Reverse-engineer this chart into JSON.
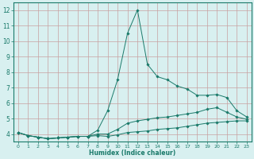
{
  "xlabel": "Humidex (Indice chaleur)",
  "x": [
    0,
    1,
    2,
    3,
    4,
    5,
    6,
    7,
    8,
    9,
    10,
    11,
    12,
    13,
    14,
    15,
    16,
    17,
    18,
    19,
    20,
    21,
    22,
    23
  ],
  "line1": [
    4.1,
    3.9,
    3.8,
    3.7,
    3.75,
    3.8,
    3.85,
    3.85,
    3.9,
    3.85,
    3.95,
    4.1,
    4.15,
    4.2,
    4.3,
    4.35,
    4.4,
    4.5,
    4.6,
    4.7,
    4.75,
    4.8,
    4.85,
    4.85
  ],
  "line2": [
    4.1,
    3.9,
    3.8,
    3.7,
    3.75,
    3.8,
    3.85,
    3.85,
    4.0,
    4.0,
    4.3,
    4.7,
    4.85,
    4.95,
    5.05,
    5.1,
    5.2,
    5.3,
    5.4,
    5.6,
    5.7,
    5.4,
    5.1,
    4.95
  ],
  "line3": [
    4.1,
    3.9,
    3.8,
    3.7,
    3.75,
    3.8,
    3.85,
    3.85,
    4.25,
    5.5,
    7.5,
    10.5,
    12.0,
    8.5,
    7.7,
    7.5,
    7.1,
    6.9,
    6.5,
    6.5,
    6.55,
    6.35,
    5.5,
    5.1
  ],
  "line_color": "#1a7a6a",
  "bg_color": "#d8f0f0",
  "grid_color": "#c8a0a0",
  "ylim": [
    3.5,
    12.5
  ],
  "yticks": [
    4,
    5,
    6,
    7,
    8,
    9,
    10,
    11,
    12
  ],
  "xlim": [
    -0.5,
    23.5
  ]
}
